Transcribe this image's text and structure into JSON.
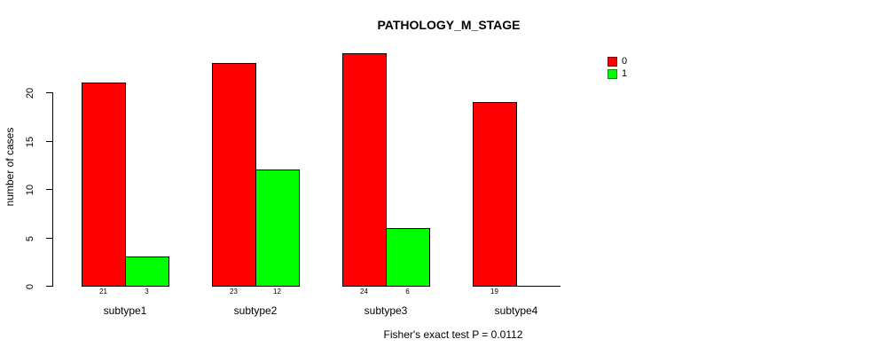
{
  "chart_data": {
    "type": "bar",
    "title": "PATHOLOGY_M_STAGE",
    "ylabel": "number of cases",
    "xlabel": "",
    "yticks": [
      0,
      5,
      10,
      15,
      20
    ],
    "ylim": [
      0,
      24
    ],
    "grid": false,
    "legend_position": "top-right",
    "categories": [
      "subtype1",
      "subtype2",
      "subtype3",
      "subtype4"
    ],
    "series": [
      {
        "name": "0",
        "color": "#ff0000",
        "values": [
          21,
          23,
          24,
          19
        ],
        "value_labels": [
          "21",
          "23",
          "24",
          "19"
        ]
      },
      {
        "name": "1",
        "color": "#00ff00",
        "values": [
          3,
          12,
          6,
          0
        ],
        "value_labels": [
          "3",
          "12",
          "6",
          ""
        ]
      }
    ],
    "legend": [
      {
        "label": "0",
        "color": "#ff0000"
      },
      {
        "label": "1",
        "color": "#00ff00"
      }
    ],
    "caption": "Fisher's exact test P = 0.0112",
    "bar_border_color": "#000000",
    "text_color": "#000000"
  }
}
